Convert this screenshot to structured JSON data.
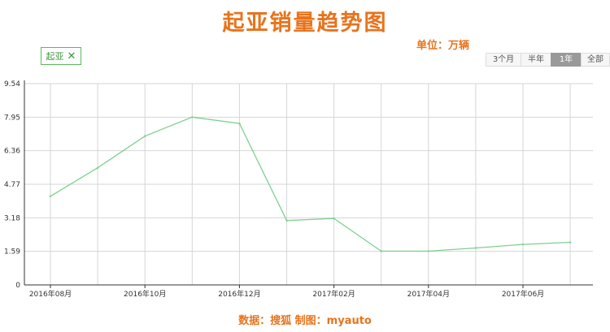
{
  "title": "起亚销量趋势图",
  "unit_label": "单位：万辆",
  "legend": {
    "label": "起亚",
    "close_glyph": "✕"
  },
  "range_buttons": [
    "3个月",
    "半年",
    "1年",
    "全部"
  ],
  "footer": "数据：搜狐 制图：myauto",
  "colors": {
    "accent": "#e8731c",
    "series": "#7fcf8f",
    "selected_range": "#999999"
  },
  "chart_data": {
    "type": "line",
    "x": [
      "2016-08",
      "2016-09",
      "2016-10",
      "2016-11",
      "2016-12",
      "2017-01",
      "2017-02",
      "2017-03",
      "2017-04",
      "2017-05",
      "2017-06",
      "2017-07"
    ],
    "x_tick_labels": [
      "2016年08月",
      "2016年10月",
      "2016年12月",
      "2017年02月",
      "2017年04月",
      "2017年06月"
    ],
    "series": [
      {
        "name": "起亚",
        "values": [
          4.2,
          5.55,
          7.05,
          7.95,
          7.65,
          3.05,
          3.15,
          1.6,
          1.6,
          1.75,
          1.92,
          2.02
        ]
      }
    ],
    "y_ticks": [
      "0",
      "1.59",
      "3.18",
      "4.77",
      "6.36",
      "7.95",
      "9.54"
    ],
    "ylim": [
      0,
      9.54
    ],
    "grid": true
  }
}
